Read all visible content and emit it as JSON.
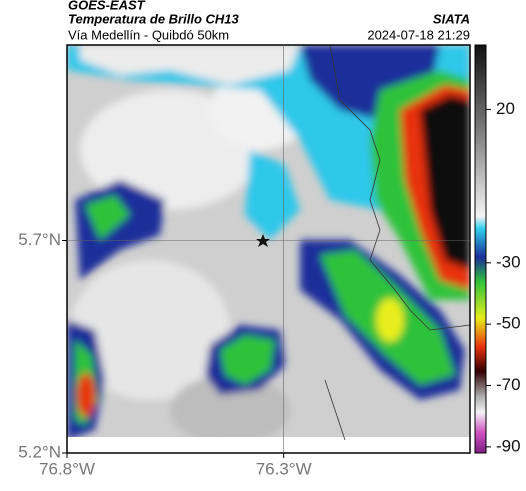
{
  "header": {
    "source": "GOES-EAST",
    "title": "Temperatura de Brillo CH13",
    "subtitle": "Vía Medellín - Quibdó 50km",
    "credit": "SIATA",
    "timestamp": "2024-07-18 21:29"
  },
  "map": {
    "xlim": [
      -76.8,
      -75.87
    ],
    "ylim": [
      5.2,
      6.16
    ],
    "xticks": [
      {
        "value": -76.8,
        "label": "76.8°W"
      },
      {
        "value": -76.3,
        "label": "76.3°W"
      }
    ],
    "yticks": [
      {
        "value": 5.7,
        "label": "5.7°N"
      },
      {
        "value": 5.2,
        "label": "5.2°N"
      }
    ]
  },
  "colorbar": {
    "lim": [
      -92,
      41
    ],
    "ticks": [
      20,
      -30,
      -50,
      -70,
      -90
    ]
  }
}
